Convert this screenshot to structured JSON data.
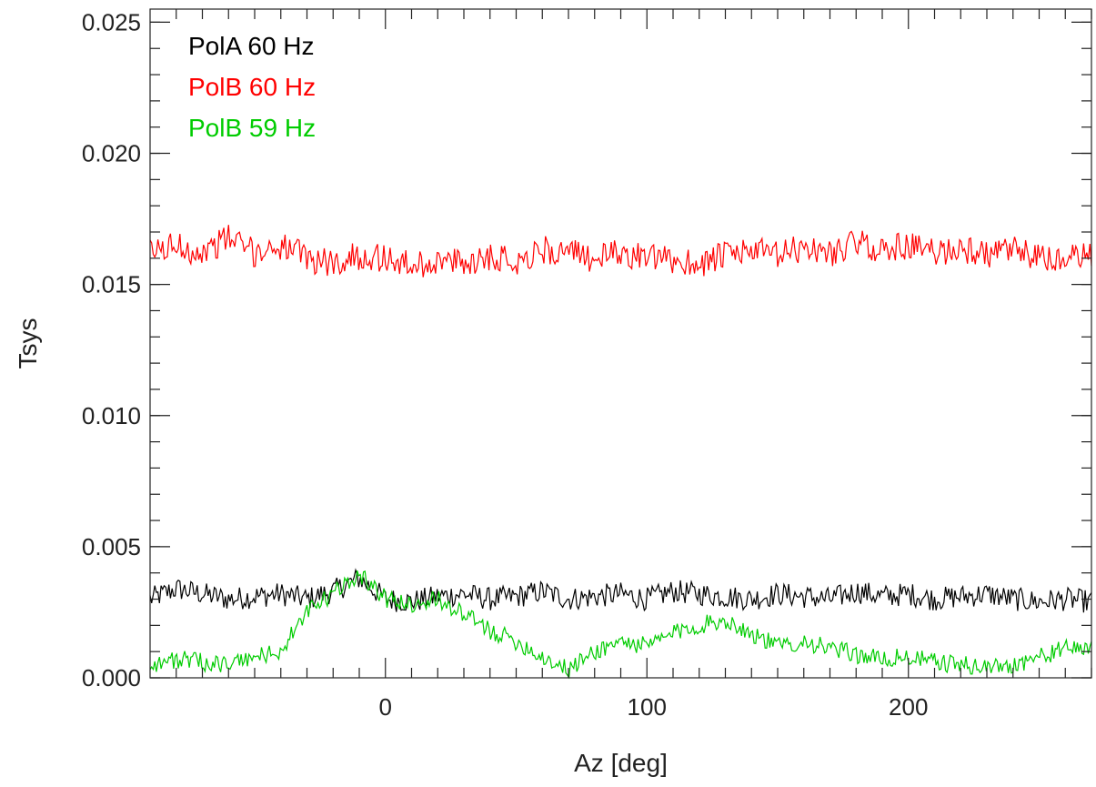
{
  "chart_data": {
    "type": "line",
    "xlabel": "Az [deg]",
    "ylabel": "Tsys",
    "xlim": [
      -90,
      270
    ],
    "ylim": [
      0.0,
      0.0255
    ],
    "x_ticks": [
      0,
      100,
      200
    ],
    "x_tick_labels": [
      "0",
      "100",
      "200"
    ],
    "y_ticks": [
      0.0,
      0.005,
      0.01,
      0.015,
      0.02,
      0.025
    ],
    "y_tick_labels": [
      "0.000",
      "0.005",
      "0.010",
      "0.015",
      "0.020",
      "0.025"
    ],
    "legend_position": "top-left",
    "grid": false,
    "x": [
      -90,
      -80,
      -70,
      -60,
      -50,
      -40,
      -30,
      -20,
      -10,
      0,
      10,
      20,
      30,
      40,
      50,
      60,
      70,
      80,
      90,
      100,
      110,
      120,
      130,
      140,
      150,
      160,
      170,
      180,
      190,
      200,
      210,
      220,
      230,
      240,
      250,
      260,
      270
    ],
    "series": [
      {
        "name": "PolA 60 Hz",
        "color": "#000000",
        "values": [
          0.003,
          0.0034,
          0.0032,
          0.003,
          0.0031,
          0.0032,
          0.003,
          0.0033,
          0.0038,
          0.003,
          0.0029,
          0.0031,
          0.0032,
          0.003,
          0.0031,
          0.0033,
          0.003,
          0.0031,
          0.0032,
          0.003,
          0.0033,
          0.0032,
          0.0031,
          0.003,
          0.0032,
          0.0031,
          0.003,
          0.0033,
          0.0031,
          0.0032,
          0.003,
          0.0031,
          0.0032,
          0.003,
          0.0029,
          0.003,
          0.0029
        ]
      },
      {
        "name": "PolB 60 Hz",
        "color": "#ff0000",
        "values": [
          0.0162,
          0.0165,
          0.0162,
          0.0168,
          0.0162,
          0.0165,
          0.016,
          0.0158,
          0.0161,
          0.016,
          0.0157,
          0.0159,
          0.0158,
          0.0161,
          0.0159,
          0.0163,
          0.0162,
          0.016,
          0.0162,
          0.016,
          0.0159,
          0.0158,
          0.0161,
          0.0163,
          0.0161,
          0.0164,
          0.0162,
          0.0166,
          0.0163,
          0.0165,
          0.0162,
          0.0164,
          0.0161,
          0.0163,
          0.016,
          0.0159,
          0.0162
        ]
      },
      {
        "name": "PolB 59 Hz",
        "color": "#00cc00",
        "values": [
          0.0005,
          0.0007,
          0.0006,
          0.0005,
          0.0008,
          0.001,
          0.0025,
          0.0032,
          0.004,
          0.003,
          0.0028,
          0.003,
          0.0024,
          0.0018,
          0.0014,
          0.0008,
          0.0003,
          0.001,
          0.0014,
          0.0012,
          0.0017,
          0.002,
          0.0022,
          0.0017,
          0.0012,
          0.0014,
          0.0011,
          0.0009,
          0.0007,
          0.0008,
          0.0006,
          0.0005,
          0.0004,
          0.0005,
          0.0008,
          0.0011,
          0.0012
        ]
      }
    ]
  }
}
